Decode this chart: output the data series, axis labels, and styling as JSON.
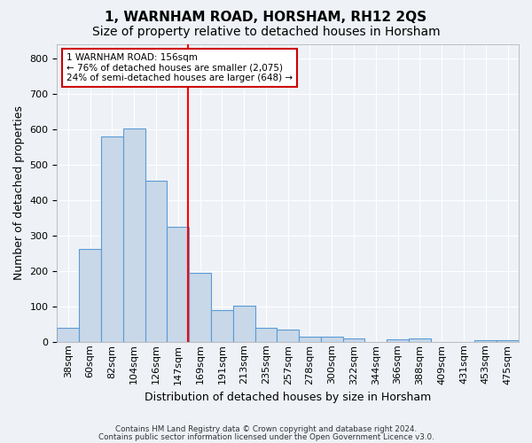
{
  "title": "1, WARNHAM ROAD, HORSHAM, RH12 2QS",
  "subtitle": "Size of property relative to detached houses in Horsham",
  "xlabel": "Distribution of detached houses by size in Horsham",
  "ylabel": "Number of detached properties",
  "bar_color": "#c8d8e8",
  "bar_edge_color": "#5b9bd5",
  "bin_labels": [
    "38sqm",
    "60sqm",
    "82sqm",
    "104sqm",
    "126sqm",
    "147sqm",
    "169sqm",
    "191sqm",
    "213sqm",
    "235sqm",
    "257sqm",
    "278sqm",
    "300sqm",
    "322sqm",
    "344sqm",
    "366sqm",
    "388sqm",
    "409sqm",
    "431sqm",
    "453sqm",
    "475sqm"
  ],
  "bar_values": [
    40,
    263,
    580,
    603,
    455,
    325,
    195,
    90,
    103,
    40,
    35,
    14,
    15,
    10,
    0,
    8,
    10,
    0,
    0,
    5,
    5
  ],
  "ylim": [
    0,
    840
  ],
  "yticks": [
    0,
    100,
    200,
    300,
    400,
    500,
    600,
    700,
    800
  ],
  "red_line_x": 5.45,
  "annotation_text": "1 WARNHAM ROAD: 156sqm\n← 76% of detached houses are smaller (2,075)\n24% of semi-detached houses are larger (648) →",
  "annotation_box_color": "#ffffff",
  "annotation_box_edge_color": "#cc0000",
  "footer_line1": "Contains HM Land Registry data © Crown copyright and database right 2024.",
  "footer_line2": "Contains public sector information licensed under the Open Government Licence v3.0.",
  "background_color": "#eef2f7",
  "grid_color": "#ffffff",
  "title_fontsize": 11,
  "subtitle_fontsize": 10,
  "tick_fontsize": 8,
  "label_fontsize": 9
}
